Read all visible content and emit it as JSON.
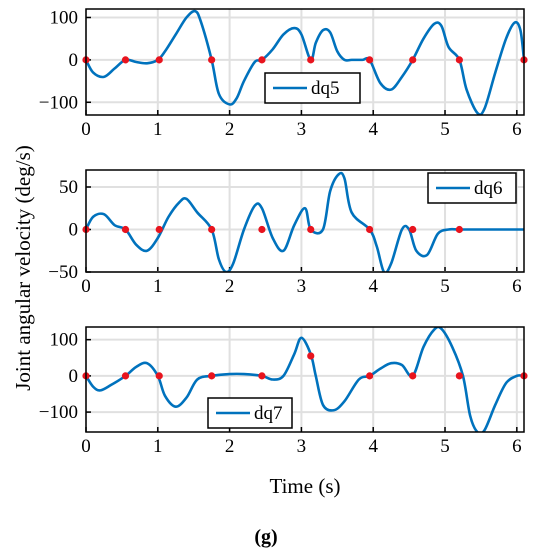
{
  "figure": {
    "ylabel": "Joint angular velocity (deg/s)",
    "xlabel": "Time (s)",
    "caption": "(g)"
  },
  "colors": {
    "line": "#0072BD",
    "marker": "#E8141E",
    "grid": "#E0E0E0",
    "axis": "#000000"
  },
  "chart_data": [
    {
      "type": "line",
      "series": [
        {
          "name": "dq5",
          "x": [
            0,
            0.1,
            0.25,
            0.4,
            0.55,
            0.7,
            0.85,
            1.0,
            1.1,
            1.25,
            1.4,
            1.52,
            1.6,
            1.75,
            1.85,
            2.0,
            2.1,
            2.2,
            2.35,
            2.45,
            2.6,
            2.75,
            2.9,
            3.0,
            3.13,
            3.2,
            3.3,
            3.4,
            3.5,
            3.6,
            3.7,
            3.85,
            3.95,
            4.1,
            4.25,
            4.4,
            4.55,
            4.7,
            4.85,
            4.95,
            5.05,
            5.2,
            5.3,
            5.45,
            5.55,
            5.7,
            5.85,
            5.97,
            6.05,
            6.1
          ],
          "y": [
            0,
            -30,
            -40,
            -20,
            0,
            -5,
            -8,
            0,
            20,
            60,
            100,
            115,
            90,
            0,
            -80,
            -105,
            -90,
            -50,
            -5,
            0,
            25,
            60,
            75,
            60,
            0,
            40,
            70,
            65,
            20,
            0,
            0,
            0,
            0,
            -55,
            -70,
            -40,
            0,
            50,
            85,
            80,
            30,
            0,
            -70,
            -125,
            -115,
            -30,
            50,
            88,
            70,
            0
          ]
        }
      ],
      "markers": {
        "x": [
          0,
          0.55,
          1.02,
          1.75,
          2.45,
          3.13,
          3.95,
          4.55,
          5.2,
          6.1
        ],
        "y": [
          0,
          0,
          0,
          0,
          0,
          0,
          0,
          0,
          0,
          0
        ]
      },
      "xlim": [
        0,
        6.1
      ],
      "ylim": [
        -130,
        120
      ],
      "xticks": [
        "0",
        "1",
        "2",
        "3",
        "4",
        "5",
        "6"
      ],
      "yticks": [
        "-100",
        "0",
        "100"
      ],
      "legend": "bottom-center",
      "grid": true
    },
    {
      "type": "line",
      "series": [
        {
          "name": "dq6",
          "x": [
            0,
            0.1,
            0.25,
            0.4,
            0.55,
            0.7,
            0.85,
            1.0,
            1.15,
            1.3,
            1.4,
            1.55,
            1.75,
            1.85,
            1.95,
            2.05,
            2.2,
            2.35,
            2.45,
            2.6,
            2.75,
            2.9,
            3.05,
            3.13,
            3.3,
            3.4,
            3.52,
            3.6,
            3.7,
            3.95,
            4.05,
            4.15,
            4.25,
            4.4,
            4.5,
            4.6,
            4.75,
            4.9,
            5.05,
            5.2,
            5.5,
            6.1
          ],
          "y": [
            0,
            15,
            18,
            5,
            0,
            -18,
            -25,
            -10,
            15,
            32,
            36,
            20,
            0,
            -35,
            -50,
            -40,
            0,
            28,
            25,
            -10,
            -25,
            5,
            25,
            0,
            0,
            45,
            65,
            60,
            20,
            0,
            -20,
            -50,
            -40,
            0,
            0,
            -25,
            -30,
            -5,
            0,
            0,
            0,
            0
          ]
        }
      ],
      "markers": {
        "x": [
          0,
          0.55,
          1.02,
          1.75,
          2.45,
          3.13,
          3.95,
          4.55,
          5.2
        ],
        "y": [
          0,
          0,
          0,
          0,
          0,
          0,
          0,
          0,
          0
        ]
      },
      "xlim": [
        0,
        6.1
      ],
      "ylim": [
        -50,
        70
      ],
      "xticks": [
        "0",
        "1",
        "2",
        "3",
        "4",
        "5",
        "6"
      ],
      "yticks": [
        "-50",
        "0",
        "50"
      ],
      "legend": "top-right",
      "grid": true
    },
    {
      "type": "line",
      "series": [
        {
          "name": "dq7",
          "x": [
            0,
            0.1,
            0.2,
            0.35,
            0.55,
            0.7,
            0.85,
            1.0,
            1.1,
            1.25,
            1.4,
            1.55,
            1.75,
            2.0,
            2.2,
            2.45,
            2.6,
            2.75,
            2.9,
            3.0,
            3.13,
            3.2,
            3.3,
            3.45,
            3.6,
            3.8,
            3.95,
            4.1,
            4.25,
            4.4,
            4.55,
            4.7,
            4.85,
            4.95,
            5.1,
            5.25,
            5.35,
            5.45,
            5.55,
            5.7,
            5.85,
            6.0,
            6.1
          ],
          "y": [
            0,
            -30,
            -40,
            -25,
            0,
            25,
            35,
            0,
            -55,
            -85,
            -60,
            -10,
            0,
            5,
            5,
            0,
            -10,
            0,
            60,
            105,
            60,
            0,
            -80,
            -95,
            -70,
            -10,
            0,
            20,
            35,
            30,
            0,
            80,
            128,
            130,
            80,
            0,
            -110,
            -155,
            -150,
            -80,
            -20,
            0,
            0
          ]
        }
      ],
      "markers": {
        "x": [
          0,
          0.55,
          1.02,
          1.75,
          2.45,
          3.13,
          3.95,
          4.55,
          5.2,
          6.1
        ],
        "y": [
          0,
          0,
          0,
          0,
          0,
          55,
          0,
          0,
          0,
          0
        ]
      },
      "xlim": [
        0,
        6.1
      ],
      "ylim": [
        -155,
        135
      ],
      "xticks": [
        "0",
        "1",
        "2",
        "3",
        "4",
        "5",
        "6"
      ],
      "yticks": [
        "-100",
        "0",
        "100"
      ],
      "legend": "bottom-center",
      "grid": true
    }
  ]
}
